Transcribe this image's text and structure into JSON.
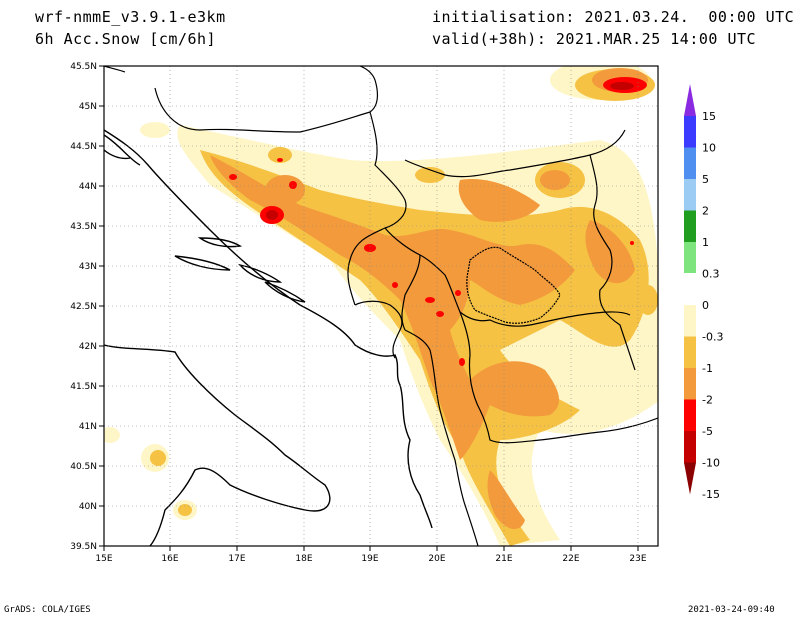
{
  "header": {
    "model": "wrf-nmmE_v3.9.1-e3km",
    "variable": "6h Acc.Snow [cm/6h]",
    "initialisation": "initialisation: 2021.03.24.  00:00 UTC",
    "valid": "valid(+38h): 2021.MAR.25 14:00 UTC"
  },
  "map": {
    "lon_labels": [
      "15E",
      "16E",
      "17E",
      "18E",
      "19E",
      "20E",
      "21E",
      "22E",
      "23E"
    ],
    "lat_labels": [
      "45.5N",
      "45N",
      "44.5N",
      "44N",
      "43.5N",
      "43N",
      "42.5N",
      "42N",
      "41.5N",
      "41N",
      "40.5N",
      "40N",
      "39.5N"
    ]
  },
  "colorbar": {
    "labels": [
      "15",
      "10",
      "5",
      "2",
      "1",
      "0.3",
      "0",
      "-0.3",
      "-1",
      "-2",
      "-5",
      "-10",
      "-15"
    ],
    "colors": [
      "#8a2be2",
      "#3b3bff",
      "#4f8fef",
      "#9ccbf4",
      "#1f9e1f",
      "#7ee47e",
      "#ffffff",
      "#fff6c8",
      "#f5c244",
      "#f39a3c",
      "#ff0000",
      "#c40000",
      "#8b0000"
    ]
  },
  "footer": {
    "left": "GrADS: COLA/IGES",
    "right": "2021-03-24-09:40"
  }
}
